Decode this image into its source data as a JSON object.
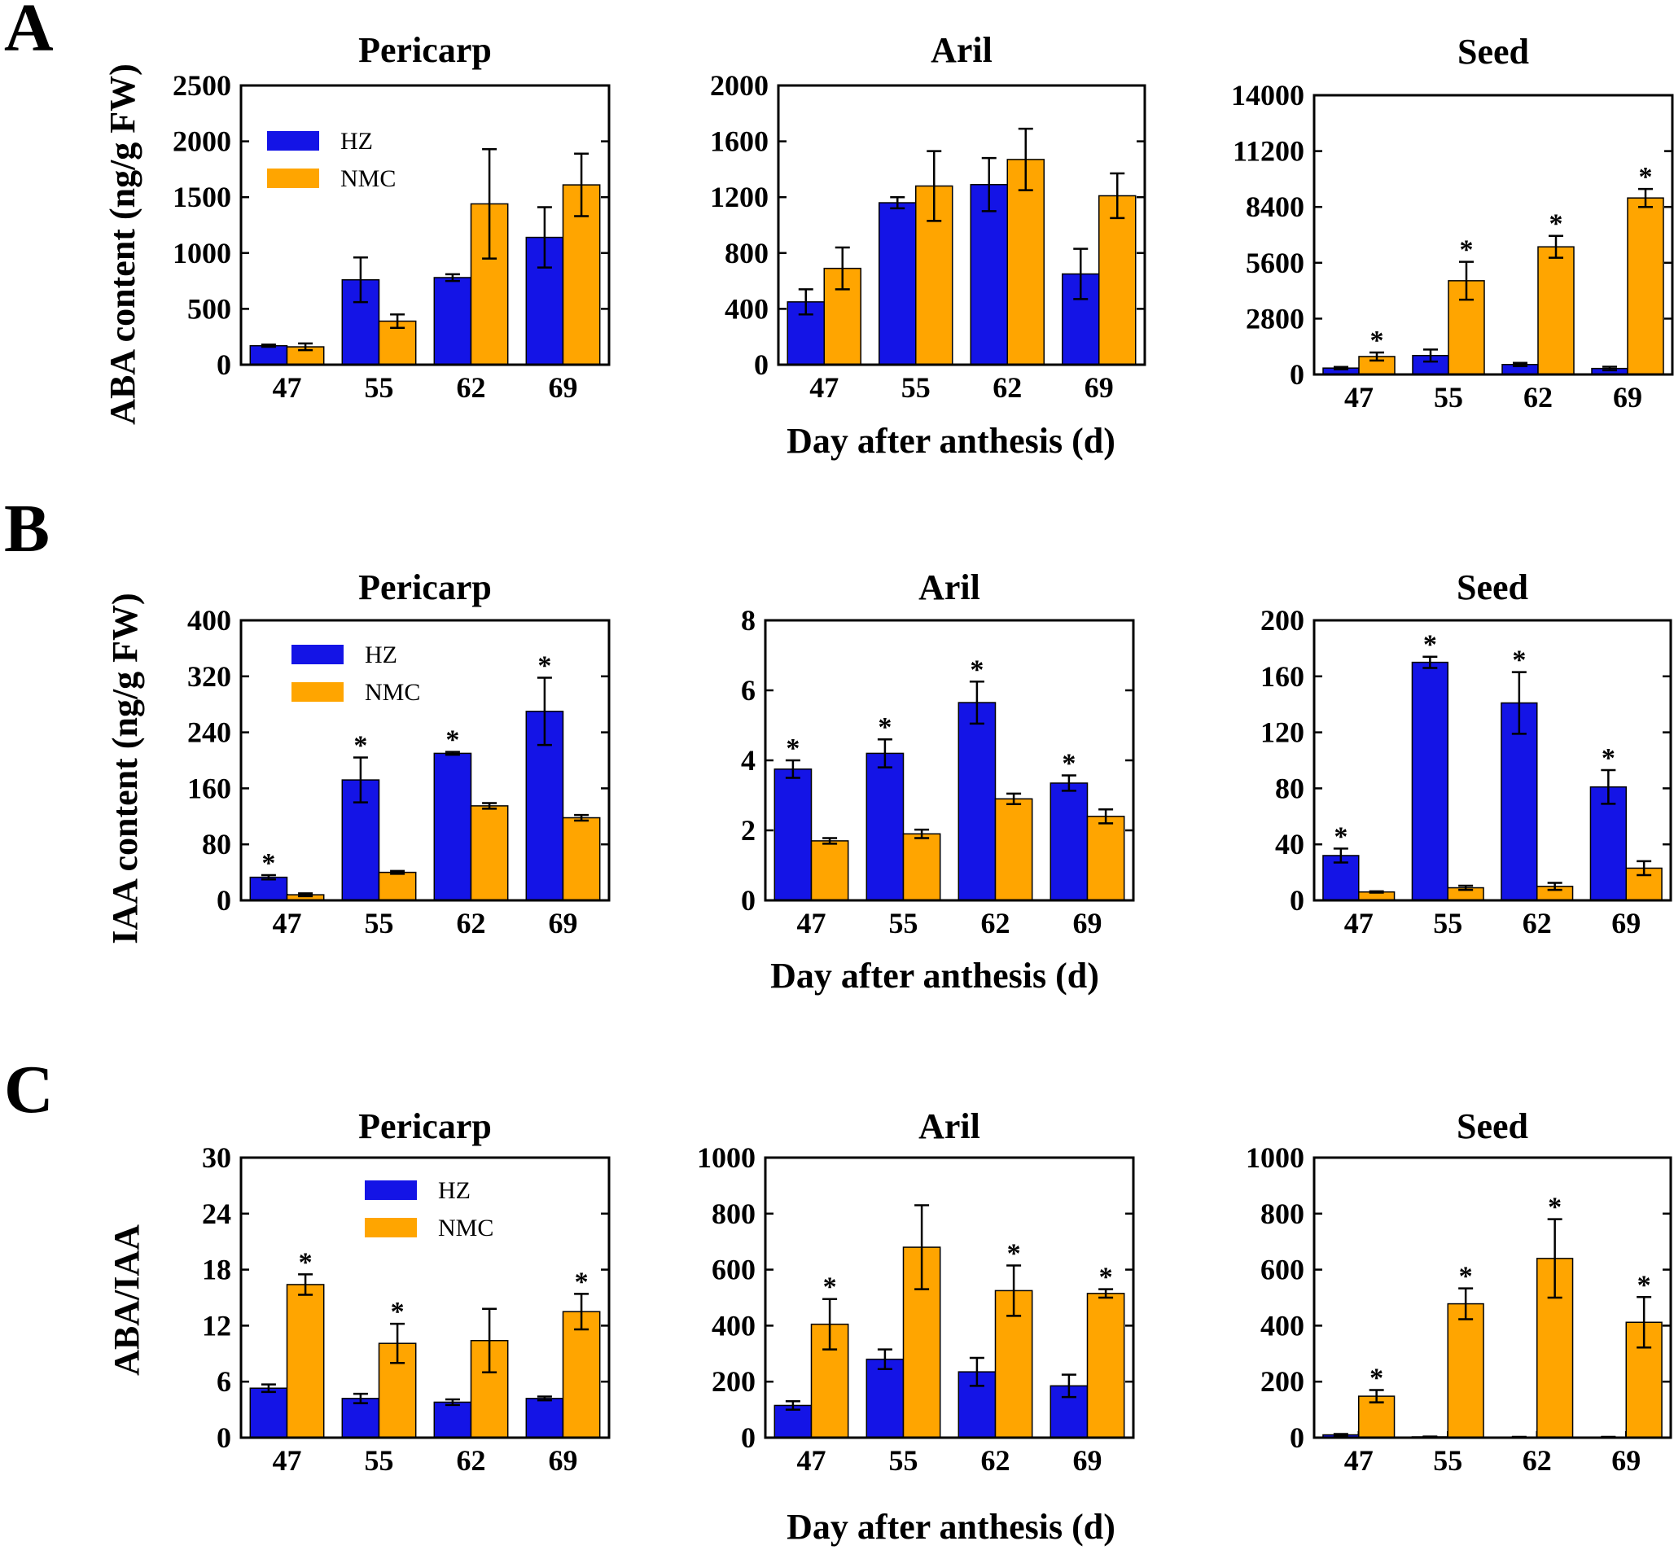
{
  "colors": {
    "hz": "#1414e6",
    "nmc": "#ffa500",
    "axis": "#000000"
  },
  "legend": {
    "hz": "HZ",
    "nmc": "NMC"
  },
  "panels": [
    {
      "letter": "A",
      "ylabel": "ABA content (ng/g FW)",
      "xlabel": "Day after anthesis (d)",
      "charts": [
        {
          "title": "Pericarp",
          "type": "bar",
          "ylim": [
            0,
            2500
          ],
          "yticks": [
            "0",
            "500",
            "1000",
            "1500",
            "2000",
            "2500"
          ],
          "categories": [
            "47",
            "55",
            "62",
            "69"
          ],
          "series": [
            {
              "name": "HZ",
              "values": [
                170,
                760,
                780,
                1140
              ],
              "errors": [
                10,
                200,
                30,
                270
              ],
              "stars": [
                false,
                false,
                false,
                false
              ]
            },
            {
              "name": "NMC",
              "values": [
                160,
                390,
                1440,
                1610
              ],
              "errors": [
                30,
                60,
                490,
                280
              ],
              "stars": [
                false,
                false,
                false,
                false
              ]
            }
          ],
          "legend": true
        },
        {
          "title": "Aril",
          "type": "bar",
          "ylim": [
            0,
            2000
          ],
          "yticks": [
            "0",
            "400",
            "800",
            "1200",
            "1600",
            "2000"
          ],
          "categories": [
            "47",
            "55",
            "62",
            "69"
          ],
          "series": [
            {
              "name": "HZ",
              "values": [
                450,
                1160,
                1290,
                650
              ],
              "errors": [
                90,
                40,
                190,
                180
              ],
              "stars": [
                false,
                false,
                false,
                false
              ]
            },
            {
              "name": "NMC",
              "values": [
                690,
                1280,
                1470,
                1210
              ],
              "errors": [
                150,
                250,
                220,
                160
              ],
              "stars": [
                false,
                false,
                false,
                false
              ]
            }
          ],
          "legend": false
        },
        {
          "title": "Seed",
          "type": "bar",
          "ylim": [
            0,
            14000
          ],
          "yticks": [
            "0",
            "2800",
            "5600",
            "8400",
            "11200",
            "14000"
          ],
          "categories": [
            "47",
            "55",
            "62",
            "69"
          ],
          "series": [
            {
              "name": "HZ",
              "values": [
                320,
                950,
                500,
                300
              ],
              "errors": [
                60,
                300,
                80,
                90
              ],
              "stars": [
                false,
                false,
                false,
                false
              ]
            },
            {
              "name": "NMC",
              "values": [
                900,
                4700,
                6400,
                8850
              ],
              "errors": [
                200,
                950,
                550,
                450
              ],
              "stars": [
                true,
                true,
                true,
                true
              ]
            }
          ],
          "legend": false
        }
      ]
    },
    {
      "letter": "B",
      "ylabel": "IAA content (ng/g FW)",
      "xlabel": "Day after anthesis (d)",
      "charts": [
        {
          "title": "Pericarp",
          "type": "bar",
          "ylim": [
            0,
            400
          ],
          "yticks": [
            "0",
            "80",
            "160",
            "240",
            "320",
            "400"
          ],
          "categories": [
            "47",
            "55",
            "62",
            "69"
          ],
          "series": [
            {
              "name": "HZ",
              "values": [
                33,
                172,
                210,
                270
              ],
              "errors": [
                3,
                32,
                2,
                48
              ],
              "stars": [
                true,
                true,
                true,
                true
              ]
            },
            {
              "name": "NMC",
              "values": [
                8,
                40,
                135,
                118
              ],
              "errors": [
                2,
                2,
                4,
                4
              ],
              "stars": [
                false,
                false,
                false,
                false
              ]
            }
          ],
          "legend": true
        },
        {
          "title": "Aril",
          "type": "bar",
          "ylim": [
            0,
            8
          ],
          "yticks": [
            "0",
            "2",
            "4",
            "6",
            "8"
          ],
          "categories": [
            "47",
            "55",
            "62",
            "69"
          ],
          "series": [
            {
              "name": "HZ",
              "values": [
                3.75,
                4.2,
                5.65,
                3.35
              ],
              "errors": [
                0.25,
                0.4,
                0.6,
                0.22
              ],
              "stars": [
                true,
                true,
                true,
                true
              ]
            },
            {
              "name": "NMC",
              "values": [
                1.7,
                1.9,
                2.9,
                2.4
              ],
              "errors": [
                0.08,
                0.12,
                0.15,
                0.2
              ],
              "stars": [
                false,
                false,
                false,
                false
              ]
            }
          ],
          "legend": false
        },
        {
          "title": "Seed",
          "type": "bar",
          "ylim": [
            0,
            200
          ],
          "yticks": [
            "0",
            "40",
            "80",
            "120",
            "160",
            "200"
          ],
          "categories": [
            "47",
            "55",
            "62",
            "69"
          ],
          "series": [
            {
              "name": "HZ",
              "values": [
                32,
                170,
                141,
                81
              ],
              "errors": [
                5,
                4,
                22,
                12
              ],
              "stars": [
                true,
                true,
                true,
                true
              ]
            },
            {
              "name": "NMC",
              "values": [
                6,
                9,
                10,
                23
              ],
              "errors": [
                0.5,
                1.5,
                2.5,
                5
              ],
              "stars": [
                false,
                false,
                false,
                false
              ]
            }
          ],
          "legend": false
        }
      ]
    },
    {
      "letter": "C",
      "ylabel": "ABA/IAA",
      "xlabel": "Day after anthesis (d)",
      "charts": [
        {
          "title": "Pericarp",
          "type": "bar",
          "ylim": [
            0,
            30
          ],
          "yticks": [
            "0",
            "6",
            "12",
            "18",
            "24",
            "30"
          ],
          "categories": [
            "47",
            "55",
            "62",
            "69"
          ],
          "series": [
            {
              "name": "HZ",
              "values": [
                5.3,
                4.2,
                3.8,
                4.2
              ],
              "errors": [
                0.4,
                0.5,
                0.3,
                0.2
              ],
              "stars": [
                false,
                false,
                false,
                false
              ]
            },
            {
              "name": "NMC",
              "values": [
                16.4,
                10.1,
                10.4,
                13.5
              ],
              "errors": [
                1.1,
                2.1,
                3.4,
                1.9
              ],
              "stars": [
                true,
                true,
                false,
                true
              ]
            }
          ],
          "legend": true
        },
        {
          "title": "Aril",
          "type": "bar",
          "ylim": [
            0,
            1000
          ],
          "yticks": [
            "0",
            "200",
            "400",
            "600",
            "800",
            "1000"
          ],
          "categories": [
            "47",
            "55",
            "62",
            "69"
          ],
          "series": [
            {
              "name": "HZ",
              "values": [
                115,
                280,
                235,
                185
              ],
              "errors": [
                15,
                35,
                50,
                40
              ],
              "stars": [
                false,
                false,
                false,
                false
              ]
            },
            {
              "name": "NMC",
              "values": [
                405,
                680,
                525,
                515
              ],
              "errors": [
                90,
                150,
                90,
                15
              ],
              "stars": [
                true,
                false,
                true,
                true
              ]
            }
          ],
          "legend": false
        },
        {
          "title": "Seed",
          "type": "bar",
          "ylim": [
            0,
            1000
          ],
          "yticks": [
            "0",
            "200",
            "400",
            "600",
            "800",
            "1000"
          ],
          "categories": [
            "47",
            "55",
            "62",
            "69"
          ],
          "series": [
            {
              "name": "HZ",
              "values": [
                10,
                3,
                2,
                2
              ],
              "errors": [
                3,
                1,
                1,
                1
              ],
              "stars": [
                false,
                false,
                false,
                false
              ]
            },
            {
              "name": "NMC",
              "values": [
                148,
                478,
                640,
                412
              ],
              "errors": [
                22,
                55,
                140,
                90
              ],
              "stars": [
                true,
                true,
                true,
                true
              ]
            }
          ],
          "legend": false
        }
      ]
    }
  ]
}
